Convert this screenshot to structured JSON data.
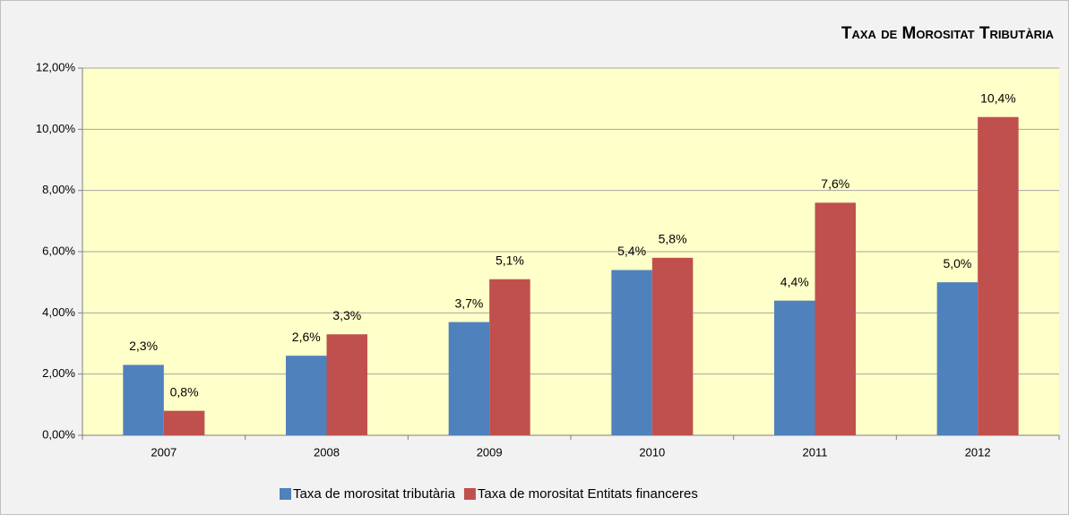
{
  "chart_data": {
    "type": "bar",
    "title": "Taxa de Morositat Tributària",
    "categories": [
      "2007",
      "2008",
      "2009",
      "2010",
      "2011",
      "2012"
    ],
    "series": [
      {
        "name": "Taxa de morositat tributària",
        "color": "#4f81bd",
        "values": [
          2.3,
          2.6,
          3.7,
          5.4,
          4.4,
          5.0
        ],
        "value_labels": [
          "2,3%",
          "2,6%",
          "3,7%",
          "5,4%",
          "4,4%",
          "5,0%"
        ]
      },
      {
        "name": "Taxa de morositat Entitats financeres",
        "color": "#c0504d",
        "values": [
          0.8,
          3.3,
          5.1,
          5.8,
          7.6,
          10.4
        ],
        "value_labels": [
          "0,8%",
          "3,3%",
          "5,1%",
          "5,8%",
          "7,6%",
          "10,4%"
        ]
      }
    ],
    "ylim": [
      0,
      12
    ],
    "yticks": [
      {
        "value": 0,
        "label": "0,00%"
      },
      {
        "value": 2,
        "label": "2,00%"
      },
      {
        "value": 4,
        "label": "4,00%"
      },
      {
        "value": 6,
        "label": "6,00%"
      },
      {
        "value": 8,
        "label": "8,00%"
      },
      {
        "value": 10,
        "label": "10,00%"
      },
      {
        "value": 12,
        "label": "12,00%"
      }
    ],
    "grid": true,
    "legend": "bottom"
  }
}
